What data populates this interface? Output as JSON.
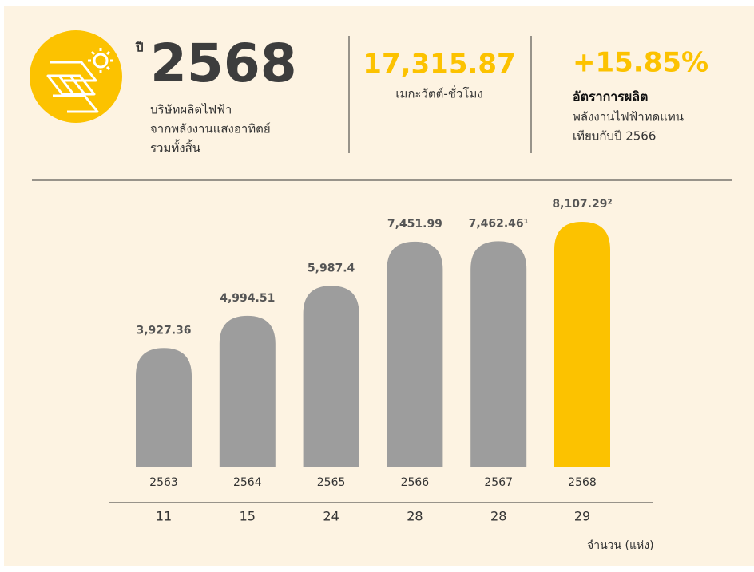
{
  "header": {
    "year_prefix": "ปี",
    "year": "2568",
    "year_caption": [
      "บริษัทผลิตไฟฟ้า",
      "จากพลังงานแสงอาทิตย์",
      "รวมทั้งสิ้น"
    ],
    "energy_value": "17,315.87",
    "energy_unit": "เมกะวัตต์-ชั่วโมง",
    "growth_value": "+15.85%",
    "growth_title": "อัตราการผลิต",
    "growth_caption": [
      "พลังงานไฟฟ้าทดแทน",
      "เทียบกับปี 2566"
    ]
  },
  "chart_data": {
    "type": "bar",
    "categories": [
      "2563",
      "2564",
      "2565",
      "2566",
      "2567",
      "2568"
    ],
    "values": [
      3927.36,
      4994.51,
      5987.4,
      7451.99,
      7462.46,
      8107.29
    ],
    "value_labels": [
      "3,927.36",
      "4,994.51",
      "5,987.4",
      "7,451.99",
      "7,462.46¹",
      "8,107.29²"
    ],
    "colors": [
      "#9d9d9d",
      "#9d9d9d",
      "#9d9d9d",
      "#9d9d9d",
      "#9d9d9d",
      "#fcc200"
    ],
    "site_counts": {
      "label": "จำนวน (แห่ง)",
      "values": [
        11,
        15,
        24,
        28,
        28,
        29
      ]
    }
  }
}
